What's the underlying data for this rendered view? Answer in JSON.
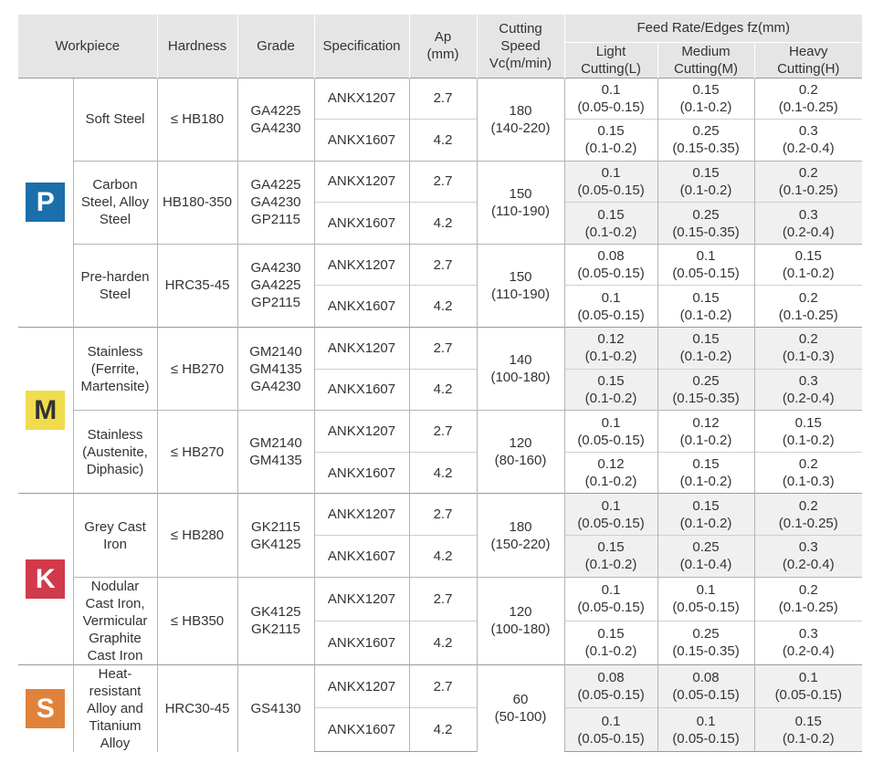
{
  "headers": {
    "workpiece": "Workpiece",
    "hardness": "Hardness",
    "grade": "Grade",
    "specification": "Specification",
    "ap_line1": "Ap",
    "ap_line2": "(mm)",
    "speed_line1": "Cutting",
    "speed_line2": "Speed",
    "speed_line3": "Vc(m/min)",
    "feed_title": "Feed Rate/Edges fz(mm)",
    "light_line1": "Light",
    "light_line2": "Cutting(L)",
    "medium_line1": "Medium",
    "medium_line2": "Cutting(M)",
    "heavy_line1": "Heavy",
    "heavy_line2": "Cutting(H)"
  },
  "classes": [
    {
      "letter": "P",
      "color": "#1a6fac",
      "groups": [
        {
          "workpiece": [
            "Soft Steel"
          ],
          "hardness": "≤ HB180",
          "grades": [
            "GA4225",
            "GA4230"
          ],
          "speed": "180",
          "speed_range": "(140-220)",
          "rows": [
            {
              "spec": "ANKX1207",
              "ap": "2.7",
              "light": [
                "0.1",
                "(0.05-0.15)"
              ],
              "medium": [
                "0.15",
                "(0.1-0.2)"
              ],
              "heavy": [
                "0.2",
                "(0.1-0.25)"
              ]
            },
            {
              "spec": "ANKX1607",
              "ap": "4.2",
              "light": [
                "0.15",
                "(0.1-0.2)"
              ],
              "medium": [
                "0.25",
                "(0.15-0.35)"
              ],
              "heavy": [
                "0.3",
                "(0.2-0.4)"
              ]
            }
          ]
        },
        {
          "workpiece": [
            "Carbon",
            "Steel, Alloy",
            "Steel"
          ],
          "hardness": "HB180-350",
          "grades": [
            "GA4225",
            "GA4230",
            "GP2115"
          ],
          "speed": "150",
          "speed_range": "(110-190)",
          "rows": [
            {
              "spec": "ANKX1207",
              "ap": "2.7",
              "light": [
                "0.1",
                "(0.05-0.15)"
              ],
              "medium": [
                "0.15",
                "(0.1-0.2)"
              ],
              "heavy": [
                "0.2",
                "(0.1-0.25)"
              ]
            },
            {
              "spec": "ANKX1607",
              "ap": "4.2",
              "light": [
                "0.15",
                "(0.1-0.2)"
              ],
              "medium": [
                "0.25",
                "(0.15-0.35)"
              ],
              "heavy": [
                "0.3",
                "(0.2-0.4)"
              ]
            }
          ]
        },
        {
          "workpiece": [
            "Pre-harden",
            "Steel"
          ],
          "hardness": "HRC35-45",
          "grades": [
            "GA4230",
            "GA4225",
            "GP2115"
          ],
          "speed": "150",
          "speed_range": "(110-190)",
          "rows": [
            {
              "spec": "ANKX1207",
              "ap": "2.7",
              "light": [
                "0.08",
                "(0.05-0.15)"
              ],
              "medium": [
                "0.1",
                "(0.05-0.15)"
              ],
              "heavy": [
                "0.15",
                "(0.1-0.2)"
              ]
            },
            {
              "spec": "ANKX1607",
              "ap": "4.2",
              "light": [
                "0.1",
                "(0.05-0.15)"
              ],
              "medium": [
                "0.15",
                "(0.1-0.2)"
              ],
              "heavy": [
                "0.2",
                "(0.1-0.25)"
              ]
            }
          ]
        }
      ]
    },
    {
      "letter": "M",
      "color": "#f0dc4e",
      "groups": [
        {
          "workpiece": [
            "Stainless",
            "(Ferrite,",
            "Martensite)"
          ],
          "hardness": "≤ HB270",
          "grades": [
            "GM2140",
            "GM4135",
            "GA4230"
          ],
          "speed": "140",
          "speed_range": "(100-180)",
          "rows": [
            {
              "spec": "ANKX1207",
              "ap": "2.7",
              "light": [
                "0.12",
                "(0.1-0.2)"
              ],
              "medium": [
                "0.15",
                "(0.1-0.2)"
              ],
              "heavy": [
                "0.2",
                "(0.1-0.3)"
              ]
            },
            {
              "spec": "ANKX1607",
              "ap": "4.2",
              "light": [
                "0.15",
                "(0.1-0.2)"
              ],
              "medium": [
                "0.25",
                "(0.15-0.35)"
              ],
              "heavy": [
                "0.3",
                "(0.2-0.4)"
              ]
            }
          ]
        },
        {
          "workpiece": [
            "Stainless",
            "(Austenite,",
            "Diphasic)"
          ],
          "hardness": "≤ HB270",
          "grades": [
            "GM2140",
            "GM4135"
          ],
          "speed": "120",
          "speed_range": "(80-160)",
          "rows": [
            {
              "spec": "ANKX1207",
              "ap": "2.7",
              "light": [
                "0.1",
                "(0.05-0.15)"
              ],
              "medium": [
                "0.12",
                "(0.1-0.2)"
              ],
              "heavy": [
                "0.15",
                "(0.1-0.2)"
              ]
            },
            {
              "spec": "ANKX1607",
              "ap": "4.2",
              "light": [
                "0.12",
                "(0.1-0.2)"
              ],
              "medium": [
                "0.15",
                "(0.1-0.2)"
              ],
              "heavy": [
                "0.2",
                "(0.1-0.3)"
              ]
            }
          ]
        }
      ]
    },
    {
      "letter": "K",
      "color": "#d13a4a",
      "groups": [
        {
          "workpiece": [
            "Grey Cast",
            "Iron"
          ],
          "hardness": "≤ HB280",
          "grades": [
            "GK2115",
            "GK4125"
          ],
          "speed": "180",
          "speed_range": "(150-220)",
          "rows": [
            {
              "spec": "ANKX1207",
              "ap": "2.7",
              "light": [
                "0.1",
                "(0.05-0.15)"
              ],
              "medium": [
                "0.15",
                "(0.1-0.2)"
              ],
              "heavy": [
                "0.2",
                "(0.1-0.25)"
              ]
            },
            {
              "spec": "ANKX1607",
              "ap": "4.2",
              "light": [
                "0.15",
                "(0.1-0.2)"
              ],
              "medium": [
                "0.25",
                "(0.1-0.4)"
              ],
              "heavy": [
                "0.3",
                "(0.2-0.4)"
              ]
            }
          ]
        },
        {
          "workpiece": [
            "Nodular",
            "Cast Iron,",
            "Vermicular",
            "Graphite",
            "Cast Iron"
          ],
          "hardness": "≤ HB350",
          "grades": [
            "GK4125",
            "GK2115"
          ],
          "speed": "120",
          "speed_range": "(100-180)",
          "rows": [
            {
              "spec": "ANKX1207",
              "ap": "2.7",
              "light": [
                "0.1",
                "(0.05-0.15)"
              ],
              "medium": [
                "0.1",
                "(0.05-0.15)"
              ],
              "heavy": [
                "0.2",
                "(0.1-0.25)"
              ]
            },
            {
              "spec": "ANKX1607",
              "ap": "4.2",
              "light": [
                "0.15",
                "(0.1-0.2)"
              ],
              "medium": [
                "0.25",
                "(0.15-0.35)"
              ],
              "heavy": [
                "0.3",
                "(0.2-0.4)"
              ]
            }
          ]
        }
      ]
    },
    {
      "letter": "S",
      "color": "#e0823a",
      "groups": [
        {
          "workpiece": [
            "Heat-",
            "resistant",
            "Alloy and",
            "Titanium",
            "Alloy"
          ],
          "hardness": "HRC30-45",
          "grades": [
            "GS4130"
          ],
          "speed": "60",
          "speed_range": "(50-100)",
          "rows": [
            {
              "spec": "ANKX1207",
              "ap": "2.7",
              "light": [
                "0.08",
                "(0.05-0.15)"
              ],
              "medium": [
                "0.08",
                "(0.05-0.15)"
              ],
              "heavy": [
                "0.1",
                "(0.05-0.15)"
              ]
            },
            {
              "spec": "ANKX1607",
              "ap": "4.2",
              "light": [
                "0.1",
                "(0.05-0.15)"
              ],
              "medium": [
                "0.1",
                "(0.05-0.15)"
              ],
              "heavy": [
                "0.15",
                "(0.1-0.2)"
              ]
            }
          ]
        }
      ]
    }
  ]
}
